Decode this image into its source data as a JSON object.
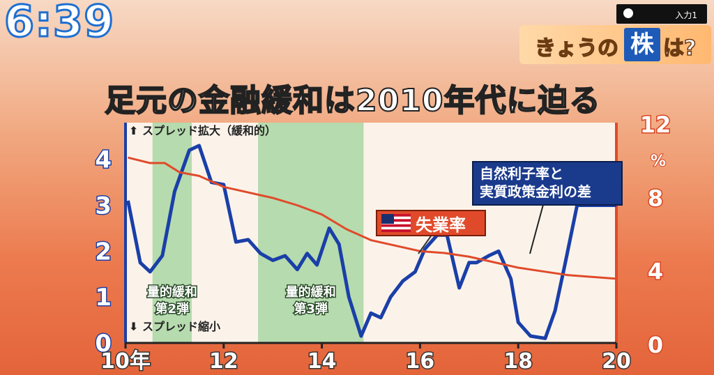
{
  "clock": "6:39",
  "input_badge": "入力1",
  "topic": {
    "prefix": "きょうの",
    "highlight": "株",
    "suffix": "は?"
  },
  "colors": {
    "blue_line": "#1a3fa8",
    "red_line": "#e04a2a",
    "green_band": "#9fd39a",
    "plot_bg": "#fbf3ea"
  },
  "chart_data": {
    "type": "line",
    "title": "足元の金融緩和は2010年代に迫る",
    "xlim": [
      2010,
      2020
    ],
    "x_ticks": [
      {
        "v": 2010,
        "label": "10年"
      },
      {
        "v": 2012,
        "label": "12"
      },
      {
        "v": 2014,
        "label": "14"
      },
      {
        "v": 2016,
        "label": "16"
      },
      {
        "v": 2018,
        "label": "18"
      },
      {
        "v": 2020,
        "label": "20"
      }
    ],
    "y_left": {
      "lim": [
        0,
        4.8
      ],
      "ticks": [
        "0",
        "1",
        "2",
        "3",
        "4"
      ],
      "top_label": "スプレッド拡大（緩和的）",
      "bottom_label": "スプレッド縮小"
    },
    "y_right": {
      "lim": [
        0,
        12
      ],
      "ticks": [
        "0",
        "4",
        "8",
        "12"
      ],
      "unit": "%"
    },
    "bands": [
      {
        "start": 2010.55,
        "end": 2011.35,
        "label": [
          "量的緩和",
          "第2弾"
        ]
      },
      {
        "start": 2012.7,
        "end": 2014.85,
        "label": [
          "量的緩和",
          "第3弾"
        ]
      }
    ],
    "series": [
      {
        "name": "自然利子率と実質政策金利の差",
        "axis": "left",
        "x": [
          2010.05,
          2010.3,
          2010.5,
          2010.75,
          2011.0,
          2011.3,
          2011.5,
          2011.75,
          2012.0,
          2012.25,
          2012.5,
          2012.75,
          2013.0,
          2013.25,
          2013.5,
          2013.7,
          2013.9,
          2014.15,
          2014.35,
          2014.55,
          2014.8,
          2015.0,
          2015.2,
          2015.4,
          2015.65,
          2015.9,
          2016.1,
          2016.35,
          2016.55,
          2016.8,
          2017.0,
          2017.15,
          2017.4,
          2017.6,
          2017.85,
          2018.0,
          2018.25,
          2018.55,
          2018.75,
          2018.95,
          2019.2,
          2019.45,
          2019.7,
          2020.0
        ],
        "values": [
          3.1,
          1.75,
          1.55,
          1.9,
          3.3,
          4.2,
          4.3,
          3.5,
          3.45,
          2.2,
          2.25,
          1.95,
          1.8,
          1.9,
          1.6,
          1.95,
          1.7,
          2.5,
          2.15,
          1.0,
          0.15,
          0.65,
          0.55,
          1.0,
          1.35,
          1.55,
          2.05,
          2.35,
          2.35,
          1.2,
          1.75,
          1.75,
          1.9,
          2.0,
          1.4,
          0.45,
          0.15,
          0.1,
          0.7,
          1.7,
          3.0,
          3.0,
          3.0,
          3.0
        ]
      },
      {
        "name": "失業率",
        "axis": "right",
        "x": [
          2010.05,
          2010.5,
          2010.8,
          2011.1,
          2011.5,
          2012.0,
          2012.5,
          2013.0,
          2013.5,
          2014.0,
          2014.5,
          2015.0,
          2015.5,
          2016.0,
          2016.5,
          2017.0,
          2017.5,
          2018.0,
          2018.5,
          2019.0,
          2019.5,
          2020.0
        ],
        "values": [
          10.1,
          9.8,
          9.8,
          9.3,
          9.1,
          8.5,
          8.2,
          7.9,
          7.5,
          7.0,
          6.2,
          5.6,
          5.3,
          5.0,
          4.9,
          4.7,
          4.4,
          4.1,
          3.9,
          3.7,
          3.6,
          3.5
        ]
      }
    ],
    "callouts": {
      "unemployment": "失業率",
      "spread": [
        "自然利子率と",
        "実質政策金利の差"
      ]
    }
  }
}
